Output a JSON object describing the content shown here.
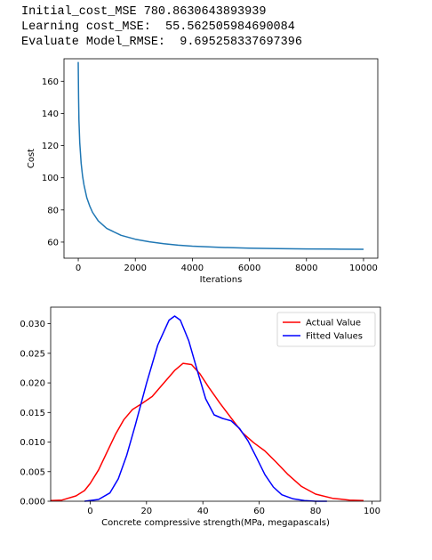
{
  "output": {
    "line1": "Initial_cost_MSE 780.8630643893939",
    "line2": "Learning cost_MSE:  55.562505984690084",
    "line3": "Evaluate Model_RMSE:  9.695258337697396"
  },
  "chart_data": [
    {
      "type": "line",
      "title": "",
      "xlabel": "Iterations",
      "ylabel": "Cost",
      "xlim": [
        -500,
        10500
      ],
      "ylim": [
        50,
        174
      ],
      "xticks": [
        0,
        2000,
        4000,
        6000,
        8000,
        10000
      ],
      "yticks": [
        60,
        80,
        100,
        120,
        140,
        160
      ],
      "grid": false,
      "series": [
        {
          "color": "#1f77b4",
          "x": [
            0,
            10,
            25,
            50,
            100,
            150,
            200,
            300,
            400,
            500,
            700,
            1000,
            1500,
            2000,
            2500,
            3000,
            3500,
            4000,
            5000,
            6000,
            7000,
            8000,
            9000,
            10000
          ],
          "y": [
            172,
            150,
            136,
            122,
            109,
            101,
            95.5,
            87.5,
            82.5,
            78.5,
            73.2,
            68.5,
            64.2,
            61.8,
            60.2,
            59.0,
            58.1,
            57.5,
            56.7,
            56.2,
            55.9,
            55.75,
            55.65,
            55.56
          ]
        }
      ]
    },
    {
      "type": "line",
      "title": "",
      "xlabel": "Concrete compressive strength(MPa, megapascals)",
      "ylabel": "",
      "xlim": [
        -14,
        103
      ],
      "ylim": [
        0,
        0.0328
      ],
      "xticks": [
        0,
        20,
        40,
        60,
        80,
        100
      ],
      "yticks": [
        0.0,
        0.005,
        0.01,
        0.015,
        0.02,
        0.025,
        0.03
      ],
      "ytick_labels": [
        "0.000",
        "0.005",
        "0.010",
        "0.015",
        "0.020",
        "0.025",
        "0.030"
      ],
      "grid": false,
      "legend": "top-right",
      "series": [
        {
          "name": "Actual Value",
          "color": "#ff0000",
          "x": [
            -14,
            -10,
            -5,
            -2,
            0,
            3,
            6,
            9,
            12,
            15,
            18,
            22,
            26,
            30,
            33,
            36,
            39,
            42,
            46,
            50,
            54,
            58,
            62,
            66,
            70,
            75,
            80,
            86,
            92,
            97
          ],
          "y": [
            0.0001,
            0.0002,
            0.0009,
            0.0018,
            0.003,
            0.0053,
            0.0083,
            0.0113,
            0.0138,
            0.0155,
            0.0164,
            0.0177,
            0.0199,
            0.0221,
            0.0233,
            0.0231,
            0.0215,
            0.0193,
            0.0166,
            0.0141,
            0.0116,
            0.0099,
            0.0085,
            0.0066,
            0.0046,
            0.0025,
            0.0012,
            0.0005,
            0.0002,
            0.0001
          ]
        },
        {
          "name": "Fitted Values",
          "color": "#0000ff",
          "x": [
            -2,
            3,
            7,
            10,
            13,
            16,
            20,
            24,
            28,
            30,
            32,
            35,
            38,
            41,
            44,
            47,
            50,
            53,
            56,
            59,
            62,
            65,
            68,
            72,
            76,
            80,
            84
          ],
          "y": [
            0.0,
            0.0003,
            0.0014,
            0.0038,
            0.0078,
            0.0128,
            0.0199,
            0.0264,
            0.0306,
            0.0313,
            0.0306,
            0.0271,
            0.0221,
            0.0173,
            0.0146,
            0.014,
            0.0136,
            0.0123,
            0.0102,
            0.0074,
            0.0045,
            0.0024,
            0.0011,
            0.0004,
            0.0001,
            0.0,
            0.0
          ]
        }
      ]
    }
  ]
}
